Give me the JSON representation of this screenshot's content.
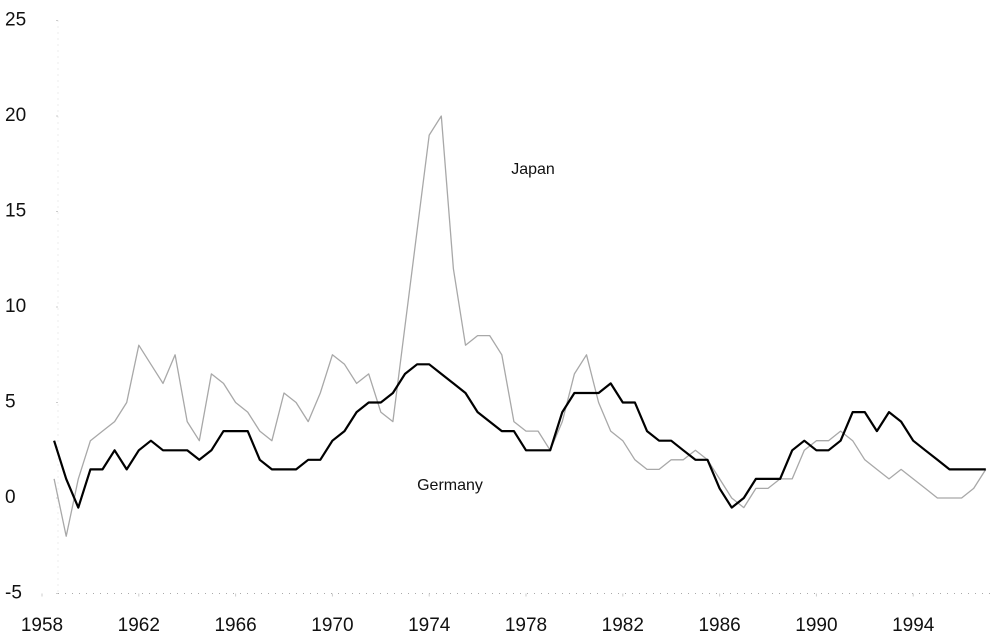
{
  "chart_data": {
    "type": "line",
    "x": [
      1958.5,
      1959,
      1959.5,
      1960,
      1960.5,
      1961,
      1961.5,
      1962,
      1962.5,
      1963,
      1963.5,
      1964,
      1964.5,
      1965,
      1965.5,
      1966,
      1966.5,
      1967,
      1967.5,
      1968,
      1968.5,
      1969,
      1969.5,
      1970,
      1970.5,
      1971,
      1971.5,
      1972,
      1972.5,
      1973,
      1973.5,
      1974,
      1974.5,
      1975,
      1975.5,
      1976,
      1976.5,
      1977,
      1977.5,
      1978,
      1978.5,
      1979,
      1979.5,
      1980,
      1980.5,
      1981,
      1981.5,
      1982,
      1982.5,
      1983,
      1983.5,
      1984,
      1984.5,
      1985,
      1985.5,
      1986,
      1986.5,
      1987,
      1987.5,
      1988,
      1988.5,
      1989,
      1989.5,
      1990,
      1990.5,
      1991,
      1991.5,
      1992,
      1992.5,
      1993,
      1993.5,
      1994,
      1994.5,
      1995,
      1995.5,
      1996,
      1996.5,
      1997
    ],
    "series": [
      {
        "name": "Japan",
        "color": "#a8a8a8",
        "values": [
          1,
          -2,
          1,
          3,
          3.5,
          4,
          5,
          8,
          7,
          6,
          7.5,
          4,
          3,
          6.5,
          6,
          5,
          4.5,
          3.5,
          3,
          5.5,
          5,
          4,
          5.5,
          7.5,
          7,
          6,
          6.5,
          4.5,
          4,
          9,
          14,
          19,
          20,
          12,
          8,
          8.5,
          8.5,
          7.5,
          4,
          3.5,
          3.5,
          2.5,
          4,
          6.5,
          7.5,
          5,
          3.5,
          3,
          2,
          1.5,
          1.5,
          2,
          2,
          2.5,
          2,
          1,
          0,
          -0.5,
          0.5,
          0.5,
          1,
          1,
          2.5,
          3,
          3,
          3.5,
          3,
          2,
          1.5,
          1,
          1.5,
          1,
          0.5,
          0,
          0,
          0,
          0.5,
          1.5
        ]
      },
      {
        "name": "Germany",
        "color": "#000000",
        "values": [
          3,
          1,
          -0.5,
          1.5,
          1.5,
          2.5,
          1.5,
          2.5,
          3,
          2.5,
          2.5,
          2.5,
          2,
          2.5,
          3.5,
          3.5,
          3.5,
          2,
          1.5,
          1.5,
          1.5,
          2,
          2,
          3,
          3.5,
          4.5,
          5,
          5,
          5.5,
          6.5,
          7,
          7,
          6.5,
          6,
          5.5,
          4.5,
          4,
          3.5,
          3.5,
          2.5,
          2.5,
          2.5,
          4.5,
          5.5,
          5.5,
          5.5,
          6,
          5,
          5,
          3.5,
          3,
          3,
          2.5,
          2,
          2,
          0.5,
          -0.5,
          0,
          1,
          1,
          1,
          2.5,
          3,
          2.5,
          2.5,
          3,
          4.5,
          4.5,
          3.5,
          4.5,
          4,
          3,
          2.5,
          2,
          1.5,
          1.5,
          1.5,
          1.5
        ]
      }
    ],
    "xlim": [
      1958,
      1997.4
    ],
    "xticks": [
      1958,
      1962,
      1966,
      1970,
      1974,
      1978,
      1982,
      1986,
      1990,
      1994
    ],
    "ylim": [
      -5,
      25
    ],
    "yticks": [
      -5,
      0,
      5,
      10,
      15,
      20,
      25
    ]
  }
}
